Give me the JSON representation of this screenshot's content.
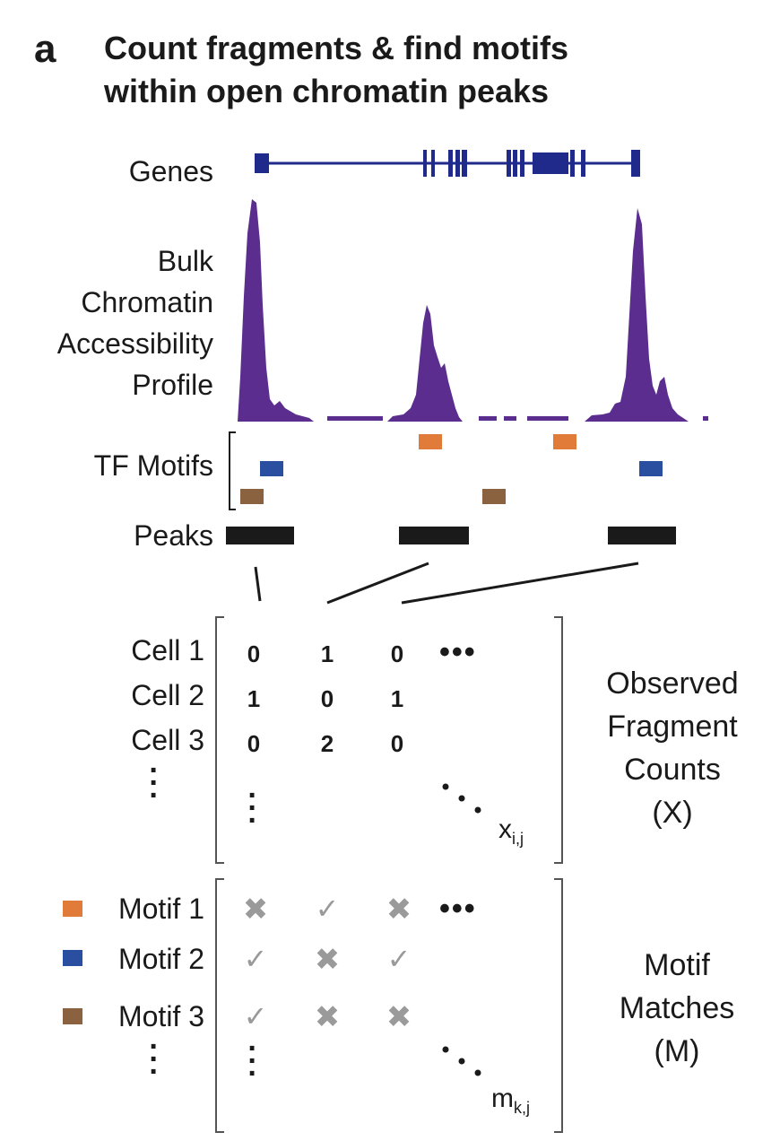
{
  "panel_letter": "a",
  "title_lines": [
    "Count fragments & find motifs",
    "within open chromatin peaks"
  ],
  "tracks": {
    "genes": "Genes",
    "profile": [
      "Bulk",
      "Chromatin",
      "Accessibility",
      "Profile"
    ],
    "tf_motifs": "TF Motifs",
    "peaks": "Peaks"
  },
  "cells": {
    "row_labels": [
      "Cell 1",
      "Cell 2",
      "Cell 3"
    ],
    "values": [
      [
        "0",
        "1",
        "0"
      ],
      [
        "1",
        "0",
        "1"
      ],
      [
        "0",
        "2",
        "0"
      ]
    ],
    "ellipsis": "•••",
    "element_base": "x",
    "element_sub": "i,j",
    "right_label": [
      "Observed",
      "Fragment",
      "Counts",
      "(X)"
    ]
  },
  "motifs": {
    "row_labels": [
      "Motif 1",
      "Motif 2",
      "Motif 3"
    ],
    "swatch_colors": [
      "#e07b39",
      "#2a4fa0",
      "#8b6240"
    ],
    "matches": [
      [
        "x",
        "c",
        "x"
      ],
      [
        "c",
        "x",
        "c"
      ],
      [
        "c",
        "x",
        "x"
      ]
    ],
    "ellipsis": "•••",
    "element_base": "m",
    "element_sub": "k,j",
    "right_label": [
      "Motif",
      "Matches",
      "(M)"
    ]
  },
  "colors": {
    "gene": "#1f2a8a",
    "profile": "#5b2d8e",
    "peak": "#1a1a1a",
    "mark": "#9a9a9a"
  },
  "icons": {
    "match": "check-mark-icon",
    "no_match": "cross-mark-icon"
  }
}
